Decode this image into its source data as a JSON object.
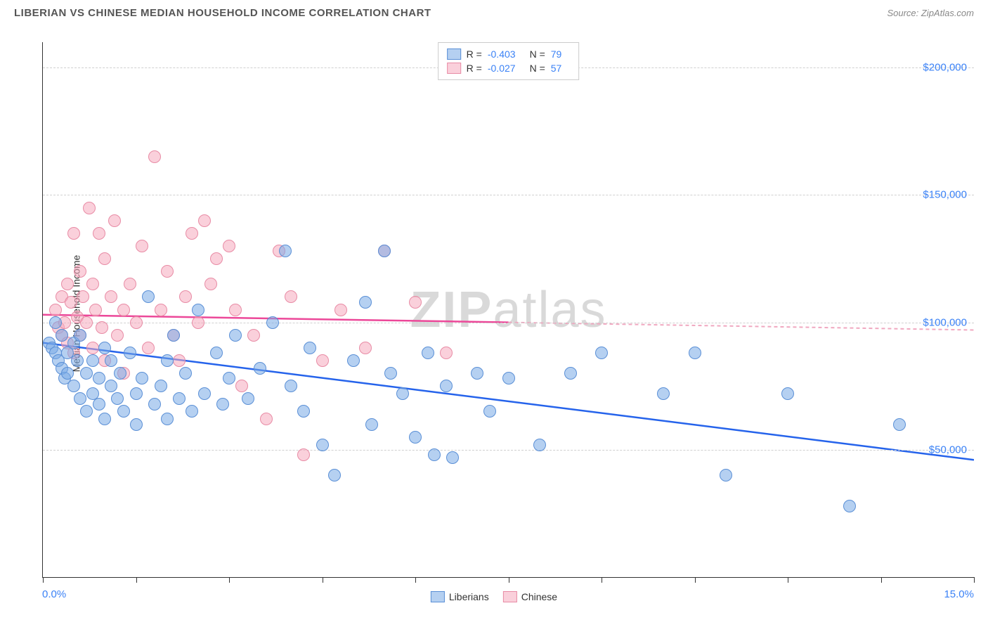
{
  "header": {
    "title": "LIBERIAN VS CHINESE MEDIAN HOUSEHOLD INCOME CORRELATION CHART",
    "source_prefix": "Source: ",
    "source": "ZipAtlas.com"
  },
  "chart": {
    "type": "scatter",
    "yaxis_title": "Median Household Income",
    "xlim": [
      0,
      15
    ],
    "ylim": [
      0,
      210000
    ],
    "xtick_positions": [
      0,
      1.5,
      3,
      4.5,
      6,
      7.5,
      9,
      10.5,
      12,
      13.5,
      15
    ],
    "xaxis_left_label": "0.0%",
    "xaxis_right_label": "15.0%",
    "yticks": [
      {
        "value": 50000,
        "label": "$50,000"
      },
      {
        "value": 100000,
        "label": "$100,000"
      },
      {
        "value": 150000,
        "label": "$150,000"
      },
      {
        "value": 200000,
        "label": "$200,000"
      }
    ],
    "grid_color": "#d0d0d0",
    "background_color": "#ffffff",
    "watermark": {
      "zip": "ZIP",
      "atlas": "atlas"
    },
    "series": [
      {
        "name": "Liberians",
        "color_fill": "rgba(120,170,230,0.55)",
        "color_stroke": "#5a8fd6",
        "trend_color": "#2563eb",
        "trend_dashed_color": "#2563eb",
        "marker_radius": 9,
        "trend": {
          "x1": 0,
          "y1": 92000,
          "x2": 15,
          "y2": 46000,
          "solid_until_x": 15
        },
        "stats": {
          "r": "-0.403",
          "n": "79"
        },
        "points": [
          [
            0.1,
            92000
          ],
          [
            0.15,
            90000
          ],
          [
            0.2,
            88000
          ],
          [
            0.2,
            100000
          ],
          [
            0.25,
            85000
          ],
          [
            0.3,
            95000
          ],
          [
            0.3,
            82000
          ],
          [
            0.35,
            78000
          ],
          [
            0.4,
            88000
          ],
          [
            0.4,
            80000
          ],
          [
            0.5,
            92000
          ],
          [
            0.5,
            75000
          ],
          [
            0.55,
            85000
          ],
          [
            0.6,
            70000
          ],
          [
            0.6,
            95000
          ],
          [
            0.7,
            80000
          ],
          [
            0.7,
            65000
          ],
          [
            0.8,
            85000
          ],
          [
            0.8,
            72000
          ],
          [
            0.9,
            78000
          ],
          [
            0.9,
            68000
          ],
          [
            1.0,
            90000
          ],
          [
            1.0,
            62000
          ],
          [
            1.1,
            75000
          ],
          [
            1.1,
            85000
          ],
          [
            1.2,
            70000
          ],
          [
            1.25,
            80000
          ],
          [
            1.3,
            65000
          ],
          [
            1.4,
            88000
          ],
          [
            1.5,
            72000
          ],
          [
            1.5,
            60000
          ],
          [
            1.6,
            78000
          ],
          [
            1.7,
            110000
          ],
          [
            1.8,
            68000
          ],
          [
            1.9,
            75000
          ],
          [
            2.0,
            85000
          ],
          [
            2.0,
            62000
          ],
          [
            2.1,
            95000
          ],
          [
            2.2,
            70000
          ],
          [
            2.3,
            80000
          ],
          [
            2.4,
            65000
          ],
          [
            2.5,
            105000
          ],
          [
            2.6,
            72000
          ],
          [
            2.8,
            88000
          ],
          [
            2.9,
            68000
          ],
          [
            3.0,
            78000
          ],
          [
            3.1,
            95000
          ],
          [
            3.3,
            70000
          ],
          [
            3.5,
            82000
          ],
          [
            3.7,
            100000
          ],
          [
            3.9,
            128000
          ],
          [
            4.0,
            75000
          ],
          [
            4.2,
            65000
          ],
          [
            4.3,
            90000
          ],
          [
            4.5,
            52000
          ],
          [
            4.7,
            40000
          ],
          [
            5.0,
            85000
          ],
          [
            5.2,
            108000
          ],
          [
            5.3,
            60000
          ],
          [
            5.5,
            128000
          ],
          [
            5.6,
            80000
          ],
          [
            5.8,
            72000
          ],
          [
            6.0,
            55000
          ],
          [
            6.2,
            88000
          ],
          [
            6.3,
            48000
          ],
          [
            6.5,
            75000
          ],
          [
            6.6,
            47000
          ],
          [
            7.0,
            80000
          ],
          [
            7.2,
            65000
          ],
          [
            7.5,
            78000
          ],
          [
            8.0,
            52000
          ],
          [
            8.5,
            80000
          ],
          [
            9.0,
            88000
          ],
          [
            10.0,
            72000
          ],
          [
            10.5,
            88000
          ],
          [
            11.0,
            40000
          ],
          [
            12.0,
            72000
          ],
          [
            13.0,
            28000
          ],
          [
            13.8,
            60000
          ]
        ]
      },
      {
        "name": "Chinese",
        "color_fill": "rgba(245,170,190,0.55)",
        "color_stroke": "#e88ba5",
        "trend_color": "#ec4899",
        "trend_dashed_color": "#f0a8c0",
        "marker_radius": 9,
        "trend": {
          "x1": 0,
          "y1": 103000,
          "x2": 15,
          "y2": 97000,
          "solid_until_x": 7.5
        },
        "stats": {
          "r": "-0.027",
          "n": "57"
        },
        "points": [
          [
            0.2,
            105000
          ],
          [
            0.25,
            98000
          ],
          [
            0.3,
            110000
          ],
          [
            0.3,
            95000
          ],
          [
            0.35,
            100000
          ],
          [
            0.4,
            115000
          ],
          [
            0.4,
            92000
          ],
          [
            0.45,
            108000
          ],
          [
            0.5,
            135000
          ],
          [
            0.5,
            88000
          ],
          [
            0.55,
            102000
          ],
          [
            0.6,
            120000
          ],
          [
            0.6,
            95000
          ],
          [
            0.65,
            110000
          ],
          [
            0.7,
            100000
          ],
          [
            0.75,
            145000
          ],
          [
            0.8,
            115000
          ],
          [
            0.8,
            90000
          ],
          [
            0.85,
            105000
          ],
          [
            0.9,
            135000
          ],
          [
            0.95,
            98000
          ],
          [
            1.0,
            125000
          ],
          [
            1.0,
            85000
          ],
          [
            1.1,
            110000
          ],
          [
            1.15,
            140000
          ],
          [
            1.2,
            95000
          ],
          [
            1.3,
            105000
          ],
          [
            1.3,
            80000
          ],
          [
            1.4,
            115000
          ],
          [
            1.5,
            100000
          ],
          [
            1.6,
            130000
          ],
          [
            1.7,
            90000
          ],
          [
            1.8,
            165000
          ],
          [
            1.9,
            105000
          ],
          [
            2.0,
            120000
          ],
          [
            2.1,
            95000
          ],
          [
            2.2,
            85000
          ],
          [
            2.3,
            110000
          ],
          [
            2.4,
            135000
          ],
          [
            2.5,
            100000
          ],
          [
            2.6,
            140000
          ],
          [
            2.7,
            115000
          ],
          [
            2.8,
            125000
          ],
          [
            3.0,
            130000
          ],
          [
            3.1,
            105000
          ],
          [
            3.2,
            75000
          ],
          [
            3.4,
            95000
          ],
          [
            3.6,
            62000
          ],
          [
            3.8,
            128000
          ],
          [
            4.0,
            110000
          ],
          [
            4.2,
            48000
          ],
          [
            4.5,
            85000
          ],
          [
            4.8,
            105000
          ],
          [
            5.2,
            90000
          ],
          [
            5.5,
            128000
          ],
          [
            6.0,
            108000
          ],
          [
            6.5,
            88000
          ]
        ]
      }
    ],
    "legend_top": {
      "r_label": "R =",
      "n_label": "N ="
    },
    "legend_bottom": [
      {
        "label": "Liberians",
        "fill": "rgba(120,170,230,0.55)",
        "stroke": "#5a8fd6"
      },
      {
        "label": "Chinese",
        "fill": "rgba(245,170,190,0.55)",
        "stroke": "#e88ba5"
      }
    ]
  }
}
